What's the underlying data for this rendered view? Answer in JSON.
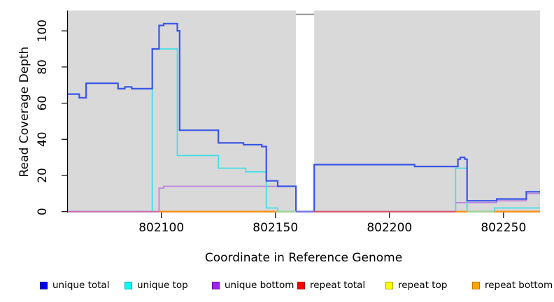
{
  "figure": {
    "xlabel": "Coordinate in Reference Genome",
    "ylabel": "Read Coverage Depth"
  },
  "chart_data": {
    "type": "line",
    "subtype": "step-after",
    "title": "",
    "xlabel": "Coordinate in Reference Genome",
    "ylabel": "Read Coverage Depth",
    "xlim": [
      802059,
      802266
    ],
    "ylim": [
      0,
      111
    ],
    "x_ticks": [
      802100,
      802150,
      802200,
      802250
    ],
    "y_ticks": [
      0,
      20,
      40,
      60,
      80,
      100
    ],
    "grid": false,
    "panel_bg": "#d9d9d9",
    "legend_position": "bottom",
    "masked_region": {
      "x0": 802159,
      "x1": 802167
    },
    "series": [
      {
        "name": "unique total",
        "z": 6,
        "line_color": "#3b55e6",
        "legend_fill": "#0000ee",
        "legend_border": "#0000a0",
        "points": [
          [
            802059,
            65
          ],
          [
            802064,
            63
          ],
          [
            802067,
            71
          ],
          [
            802081,
            68
          ],
          [
            802084,
            69
          ],
          [
            802087,
            68
          ],
          [
            802096,
            90
          ],
          [
            802099,
            103
          ],
          [
            802101,
            104
          ],
          [
            802107,
            100
          ],
          [
            802108,
            45
          ],
          [
            802125,
            38
          ],
          [
            802136,
            37
          ],
          [
            802144,
            36
          ],
          [
            802146,
            17
          ],
          [
            802151,
            14
          ],
          [
            802159,
            0
          ],
          [
            802167,
            26
          ],
          [
            802211,
            25
          ],
          [
            802230,
            29
          ],
          [
            802231,
            30
          ],
          [
            802233,
            29
          ],
          [
            802234,
            6
          ],
          [
            802247,
            7
          ],
          [
            802260,
            11
          ],
          [
            802266,
            11
          ]
        ]
      },
      {
        "name": "unique top",
        "z": 5,
        "line_color": "#45dfe8",
        "legend_fill": "#00ffff",
        "legend_border": "#00a8b0",
        "points": [
          [
            802059,
            0
          ],
          [
            802096,
            90
          ],
          [
            802107,
            31
          ],
          [
            802125,
            24
          ],
          [
            802137,
            22
          ],
          [
            802146,
            2
          ],
          [
            802151,
            0
          ],
          [
            802229,
            24
          ],
          [
            802234,
            0
          ],
          [
            802246,
            2
          ],
          [
            802266,
            2
          ]
        ]
      },
      {
        "name": "unique bottom",
        "z": 4,
        "line_color": "#bd84e0",
        "legend_fill": "#a020f0",
        "legend_border": "#6c0fa8",
        "points": [
          [
            802059,
            0
          ],
          [
            802099,
            13
          ],
          [
            802101,
            14
          ],
          [
            802159,
            0
          ],
          [
            802229,
            5
          ],
          [
            802247,
            6
          ],
          [
            802260,
            10
          ],
          [
            802266,
            10
          ]
        ]
      },
      {
        "name": "repeat total",
        "z": 2,
        "line_color": "#e03030",
        "legend_fill": "#ff0000",
        "legend_border": "#a80000",
        "points": [
          [
            802059,
            0
          ],
          [
            802266,
            0
          ]
        ]
      },
      {
        "name": "repeat top",
        "z": 1,
        "line_color": "#ffe000",
        "legend_fill": "#ffff00",
        "legend_border": "#b0a000",
        "points": [
          [
            802059,
            0
          ],
          [
            802266,
            0
          ]
        ]
      },
      {
        "name": "repeat bottom",
        "z": 3,
        "line_color": "#ff9015",
        "legend_fill": "#ffa500",
        "legend_border": "#c07400",
        "points": [
          [
            802059,
            0
          ],
          [
            802266,
            0
          ]
        ]
      }
    ],
    "zero_line_segments": [
      {
        "x0": 802059,
        "x1": 802099,
        "color": "#d06cb4"
      },
      {
        "x0": 802099,
        "x1": 802150,
        "color": "#ff9015"
      },
      {
        "x0": 802150,
        "x1": 802159,
        "color": "#9ad69a"
      },
      {
        "x0": 802159,
        "x1": 802167,
        "color": "#7a70f0"
      },
      {
        "x0": 802167,
        "x1": 802229,
        "color": "#e0506a"
      },
      {
        "x0": 802229,
        "x1": 802234,
        "color": "#ff9015"
      },
      {
        "x0": 802234,
        "x1": 802246,
        "color": "#9ad69a"
      },
      {
        "x0": 802246,
        "x1": 802266,
        "color": "#ff9015"
      }
    ]
  }
}
